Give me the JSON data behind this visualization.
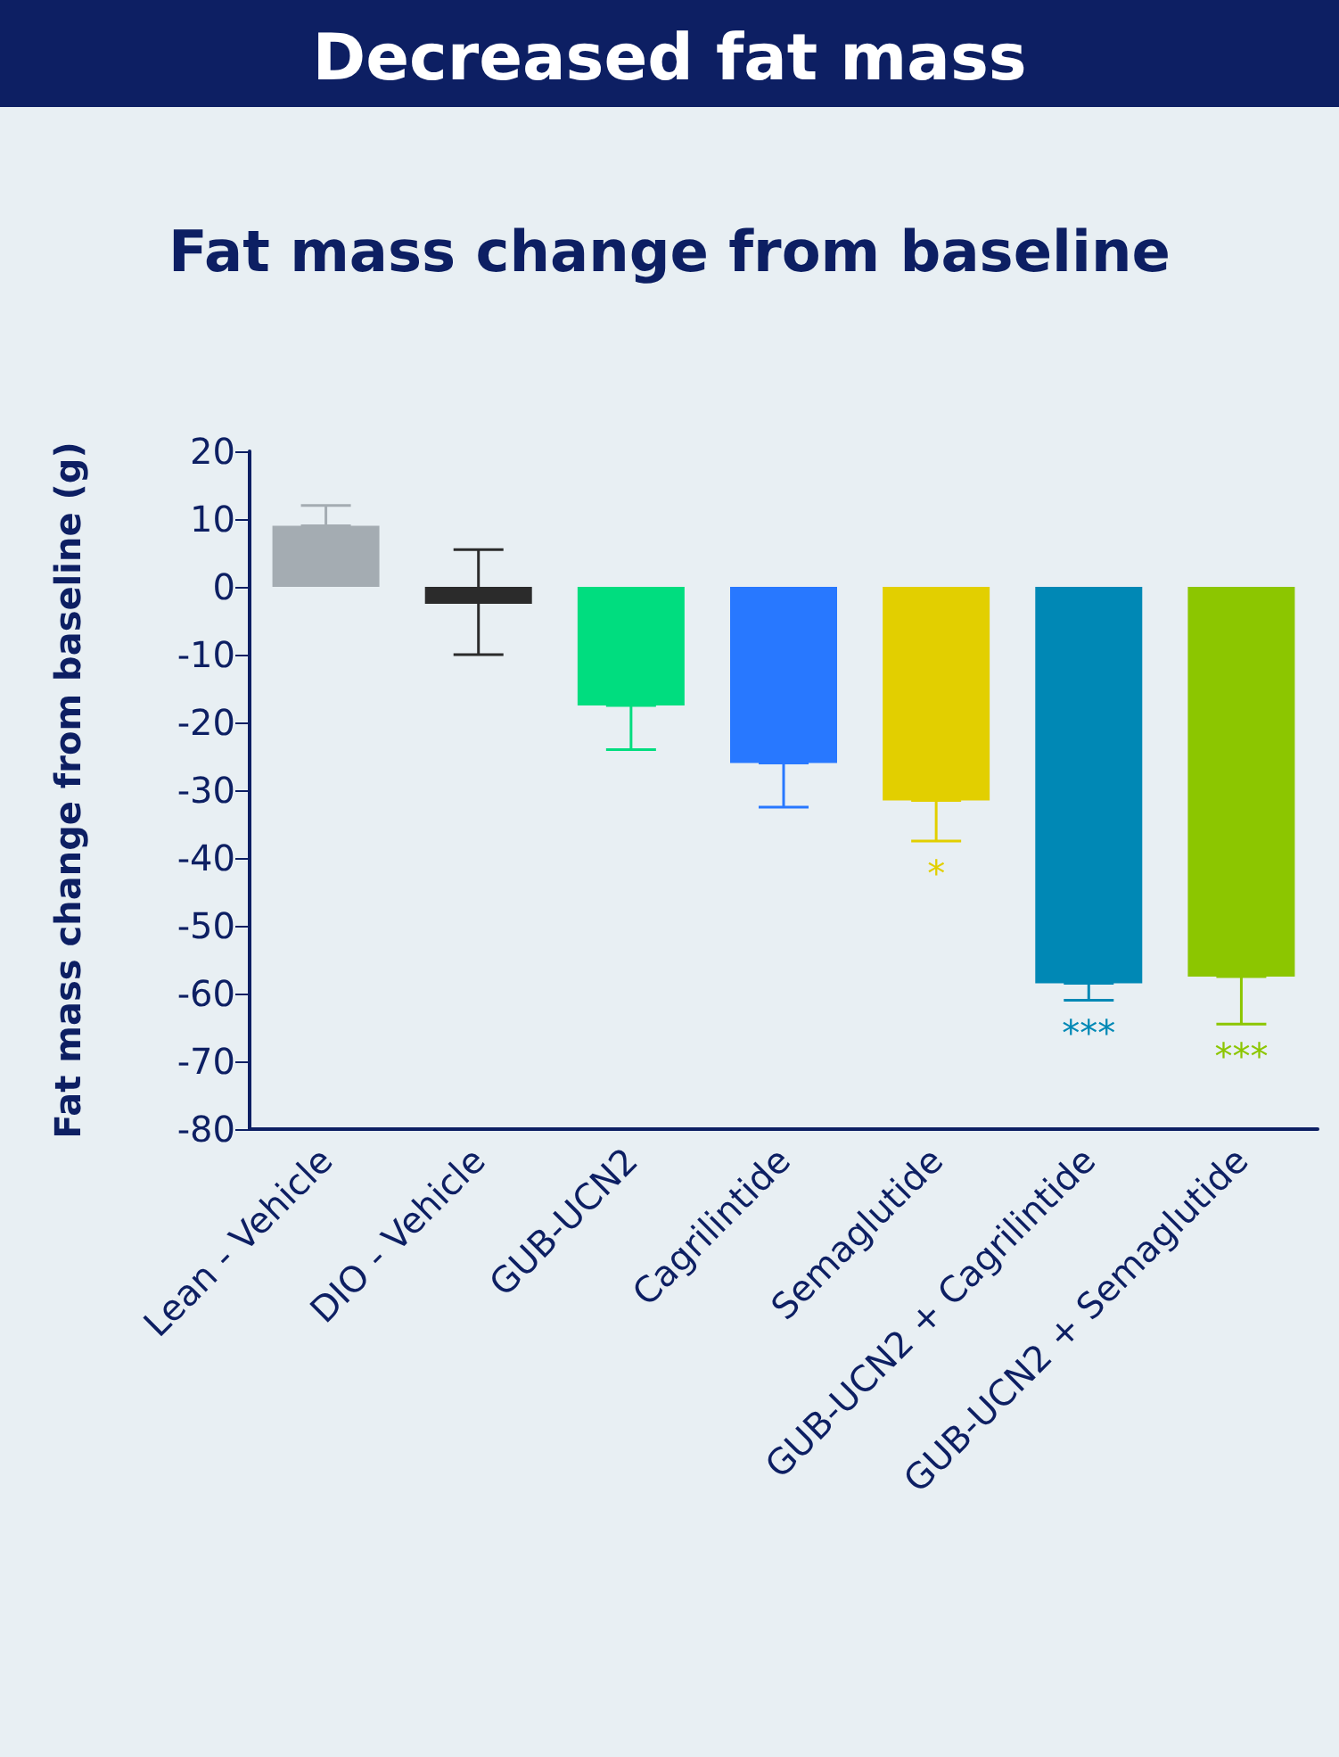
{
  "chart_data": {
    "type": "bar",
    "title": "Decreased fat mass",
    "subtitle": "Fat mass change from baseline",
    "ylabel": "Fat mass change from baseline (g)",
    "categories": [
      "Lean - Vehicle",
      "DIO - Vehicle",
      "GUB-UCN2",
      "Cagrilintide",
      "Semaglutide",
      "GUB-UCN2 + Cagrilintide",
      "GUB-UCN2 + Semaglutide"
    ],
    "values": [
      9,
      -2.5,
      -17.5,
      -26,
      -31.5,
      -58.5,
      -57.5
    ],
    "colors": [
      "#a4acb2",
      "#2b2b2b",
      "#00dd7f",
      "#2878ff",
      "#e2cf00",
      "#0088b5",
      "#8cc600"
    ],
    "errors": [
      [
        9,
        12
      ],
      [
        -10,
        5.5
      ],
      [
        -24,
        -17.5
      ],
      [
        -32.5,
        -26
      ],
      [
        -37.5,
        -31.5
      ],
      [
        -61,
        -58.5
      ],
      [
        -64.5,
        -57.5
      ]
    ],
    "ylim": [
      -80,
      20
    ],
    "yticks": [
      -80,
      -70,
      -60,
      -50,
      -40,
      -30,
      -20,
      -10,
      0,
      10,
      20
    ],
    "grid": false,
    "annotations": [
      {
        "text": "*",
        "x": "Semaglutide",
        "y": -37.5
      },
      {
        "text": "***",
        "x": "GUB-UCN2 + Cagrilintide",
        "y": -61
      },
      {
        "text": "***",
        "x": "GUB-UCN2 + Semaglutide",
        "y": -64.5
      }
    ]
  }
}
